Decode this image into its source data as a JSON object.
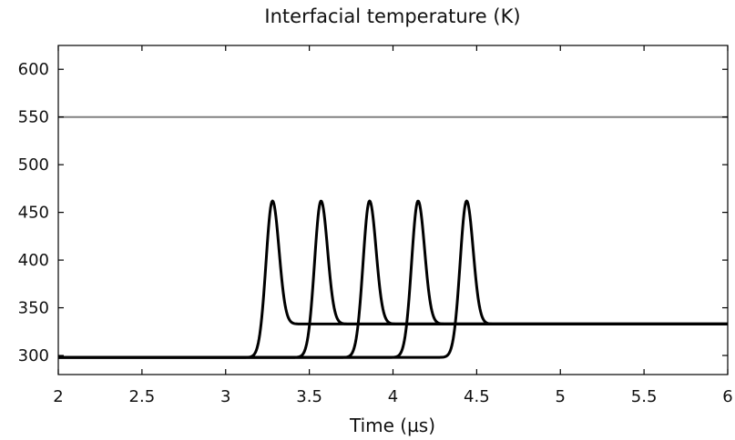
{
  "chart_data": {
    "type": "line",
    "title": "Interfacial temperature (K)",
    "xlabel": "Time (µs)",
    "ylabel": "",
    "xlim": [
      2,
      6
    ],
    "ylim": [
      280,
      625
    ],
    "xticks": [
      2,
      2.5,
      3,
      3.5,
      4,
      4.5,
      5,
      5.5,
      6
    ],
    "xtick_labels": [
      "2",
      "2.5",
      "3",
      "3.5",
      "4",
      "4.5",
      "5",
      "5.5",
      "6"
    ],
    "yticks": [
      300,
      350,
      400,
      450,
      500,
      550,
      600
    ],
    "ytick_labels": [
      "300",
      "350",
      "400",
      "450",
      "500",
      "550",
      "600"
    ],
    "grid": false,
    "reference_line": {
      "y": 550,
      "color": "#808080"
    },
    "line_color": "#000000",
    "series": [
      {
        "baseline": 298,
        "peak_time": 3.28,
        "peak": 462,
        "final": 333
      },
      {
        "baseline": 298,
        "peak_time": 3.57,
        "peak": 462,
        "final": 333
      },
      {
        "baseline": 298,
        "peak_time": 3.86,
        "peak": 462,
        "final": 333
      },
      {
        "baseline": 298,
        "peak_time": 4.15,
        "peak": 462,
        "final": 333
      },
      {
        "baseline": 298,
        "peak_time": 4.44,
        "peak": 462,
        "final": 333
      }
    ]
  }
}
